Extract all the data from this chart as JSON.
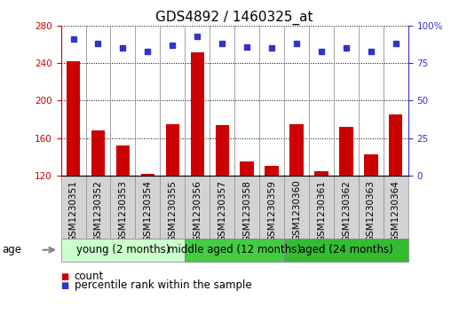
{
  "title": "GDS4892 / 1460325_at",
  "samples": [
    "GSM1230351",
    "GSM1230352",
    "GSM1230353",
    "GSM1230354",
    "GSM1230355",
    "GSM1230356",
    "GSM1230357",
    "GSM1230358",
    "GSM1230359",
    "GSM1230360",
    "GSM1230361",
    "GSM1230362",
    "GSM1230363",
    "GSM1230364"
  ],
  "counts": [
    242,
    168,
    152,
    122,
    175,
    252,
    174,
    135,
    130,
    175,
    125,
    172,
    143,
    185
  ],
  "percentiles": [
    91,
    88,
    85,
    83,
    87,
    93,
    88,
    86,
    85,
    88,
    83,
    85,
    83,
    88
  ],
  "ylim": [
    120,
    280
  ],
  "yticks": [
    120,
    160,
    200,
    240,
    280
  ],
  "y2lim": [
    0,
    100
  ],
  "y2ticks": [
    0,
    25,
    50,
    75,
    100
  ],
  "bar_color": "#cc0000",
  "dot_color": "#3333cc",
  "bg_plot": "#ffffff",
  "bg_xticklabel": "#d3d3d3",
  "groups": [
    {
      "label": "young (2 months)",
      "start": 0,
      "end": 5,
      "color": "#ccffcc"
    },
    {
      "label": "middle aged (12 months)",
      "start": 5,
      "end": 9,
      "color": "#44cc44"
    },
    {
      "label": "aged (24 months)",
      "start": 9,
      "end": 14,
      "color": "#33bb33"
    }
  ],
  "age_label": "age",
  "legend_count_label": "count",
  "legend_percentile_label": "percentile rank within the sample",
  "title_fontsize": 11,
  "tick_fontsize": 7.5,
  "label_fontsize": 8.5,
  "group_label_fontsize": 8.5
}
